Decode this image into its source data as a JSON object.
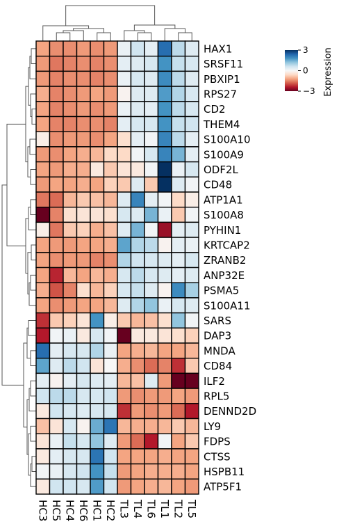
{
  "chart_data": {
    "type": "heatmap",
    "columns": [
      "HC3",
      "HC5",
      "HC4",
      "HC6",
      "HC1",
      "HC2",
      "TL3",
      "TL4",
      "TL6",
      "TL1",
      "TL2",
      "TL5"
    ],
    "rows": [
      "HAX1",
      "SRSF11",
      "PBXIP1",
      "RPS27",
      "CD2",
      "THEM4",
      "S100A10",
      "S100A9",
      "ODF2L",
      "CD48",
      "ATP1A1",
      "S100A8",
      "PYHIN1",
      "KRTCAP2",
      "ZRANB2",
      "ANP32E",
      "PSMA5",
      "S100A11",
      "SARS",
      "DAP3",
      "MNDA",
      "CD84",
      "ILF2",
      "RPL5",
      "DENND2D",
      "LY9",
      "FDPS",
      "CTSS",
      "HSPB11",
      "ATP5F1"
    ],
    "values": [
      [
        -1.2,
        -1.4,
        -1.4,
        -1.3,
        -1.4,
        -1.3,
        0.2,
        0.6,
        0.3,
        2.3,
        0.8,
        0.4
      ],
      [
        -1.3,
        -1.6,
        -1.5,
        -1.4,
        -1.5,
        -1.4,
        0.3,
        0.4,
        0.5,
        1.8,
        0.7,
        0.5
      ],
      [
        -1.3,
        -1.5,
        -1.4,
        -1.4,
        -1.5,
        -1.4,
        0.2,
        0.5,
        0.4,
        1.9,
        0.8,
        0.4
      ],
      [
        -1.1,
        -1.5,
        -1.4,
        -1.3,
        -1.2,
        -1.3,
        -0.1,
        0.4,
        0.4,
        1.7,
        0.9,
        0.5
      ],
      [
        -1.2,
        -1.5,
        -1.4,
        -1.3,
        -1.4,
        -1.3,
        0.2,
        0.4,
        0.3,
        1.8,
        0.8,
        0.5
      ],
      [
        -1.2,
        -1.5,
        -1.5,
        -1.4,
        -1.4,
        -1.5,
        0.3,
        0.5,
        0.5,
        1.8,
        0.7,
        0.6
      ],
      [
        -0.2,
        -1.4,
        -1.3,
        -1.3,
        -1.4,
        -1.2,
        -0.5,
        0.3,
        0.1,
        2.0,
        0.8,
        0.3
      ],
      [
        -1.3,
        -1.4,
        -1.2,
        -1.1,
        -1.0,
        -0.6,
        -0.6,
        0.1,
        0.5,
        2.0,
        1.4,
        0.3
      ],
      [
        -1.2,
        -1.3,
        -1.1,
        -1.1,
        -0.3,
        -0.8,
        -0.4,
        -0.3,
        0.1,
        3.0,
        0.2,
        0.5
      ],
      [
        -1.3,
        -1.2,
        -1.2,
        -1.1,
        -1.2,
        -0.7,
        -0.8,
        0.4,
        -0.8,
        3.1,
        0.4,
        0.1
      ],
      [
        -1.6,
        -1.7,
        -1.0,
        -0.8,
        -0.9,
        -1.0,
        0.4,
        2.0,
        0.3,
        0.1,
        -0.6,
        -0.2
      ],
      [
        -3.0,
        -1.5,
        -0.5,
        -0.4,
        -0.4,
        -0.5,
        0.5,
        0.4,
        1.4,
        0.2,
        -0.8,
        0.1
      ],
      [
        -0.2,
        -1.6,
        -0.8,
        -0.7,
        -1.1,
        -0.9,
        0.4,
        1.4,
        0.1,
        -2.6,
        0.3,
        0.4
      ],
      [
        -1.2,
        -1.3,
        -1.3,
        -1.2,
        -1.2,
        -1.1,
        1.6,
        0.9,
        0.8,
        -0.1,
        0.3,
        0.2
      ],
      [
        -1.2,
        -1.4,
        -1.3,
        -1.3,
        -1.5,
        -1.4,
        0.9,
        0.6,
        0.5,
        0.4,
        0.3,
        0.5
      ],
      [
        -1.2,
        -2.3,
        -1.0,
        -1.2,
        -1.0,
        -1.1,
        0.5,
        0.8,
        0.5,
        0.4,
        0.3,
        0.4
      ],
      [
        -1.1,
        -1.9,
        -1.5,
        -0.5,
        -1.0,
        -0.7,
        0.5,
        0.7,
        0.4,
        -0.1,
        1.9,
        1.0
      ],
      [
        -1.2,
        -1.4,
        -1.3,
        -1.2,
        -1.2,
        -1.0,
        0.4,
        0.9,
        1.2,
        0.2,
        0.5,
        0.4
      ],
      [
        -2.2,
        -0.8,
        -0.7,
        -0.4,
        1.8,
        -0.2,
        -0.8,
        -1.0,
        -0.9,
        -0.5,
        1.2,
        0.1
      ],
      [
        -2.4,
        0.1,
        0.2,
        -0.3,
        0.5,
        0.1,
        -3.0,
        -0.3,
        -0.3,
        -0.4,
        -0.5,
        -0.7
      ],
      [
        2.3,
        0.3,
        0.5,
        0.5,
        0.9,
        0.2,
        -1.2,
        -1.1,
        -1.0,
        -1.2,
        -1.2,
        -1.0
      ],
      [
        1.6,
        0.4,
        0.8,
        0.6,
        -0.4,
        0.0,
        -1.1,
        -1.4,
        -1.7,
        -1.5,
        -2.2,
        -0.8
      ],
      [
        0.3,
        -0.1,
        0.3,
        0.5,
        0.4,
        0.3,
        -1.0,
        -0.9,
        0.4,
        -1.3,
        -3.2,
        -3.1
      ],
      [
        0.6,
        0.8,
        0.8,
        0.5,
        0.5,
        0.6,
        -1.3,
        -1.4,
        -1.3,
        -1.3,
        -1.2,
        -1.3
      ],
      [
        -0.3,
        0.6,
        0.5,
        0.4,
        0.5,
        0.5,
        -2.2,
        -1.3,
        -1.4,
        -1.3,
        -1.7,
        -2.4
      ],
      [
        -0.9,
        -0.4,
        0.5,
        -0.1,
        1.5,
        2.2,
        -1.0,
        -1.1,
        -1.1,
        -1.0,
        -0.8,
        -1.0
      ],
      [
        -0.4,
        0.2,
        0.7,
        0.5,
        1.2,
        0.4,
        -1.3,
        -1.7,
        -2.4,
        0.1,
        -1.2,
        -0.8
      ],
      [
        -0.3,
        0.3,
        0.5,
        0.5,
        2.2,
        0.6,
        -1.2,
        -1.2,
        -1.2,
        -1.1,
        -1.2,
        -1.2
      ],
      [
        0.1,
        0.2,
        0.5,
        0.6,
        1.8,
        0.7,
        -1.3,
        -1.2,
        -1.1,
        -1.1,
        -1.1,
        -1.2
      ],
      [
        -0.3,
        0.6,
        0.6,
        0.5,
        1.7,
        0.6,
        -1.3,
        -1.2,
        -1.1,
        -1.0,
        -1.2,
        -1.3
      ]
    ],
    "colorbar": {
      "label": "Expression",
      "ticks": [
        3,
        0,
        -3
      ],
      "range": [
        -3,
        3
      ],
      "colormap": "RdBu_r"
    },
    "row_dendrogram": true,
    "col_dendrogram": true,
    "colors": {
      "high": "#053061",
      "mid": "#f7f7f7",
      "low": "#67001f",
      "grid": "#000000",
      "tree": "#555555"
    }
  }
}
